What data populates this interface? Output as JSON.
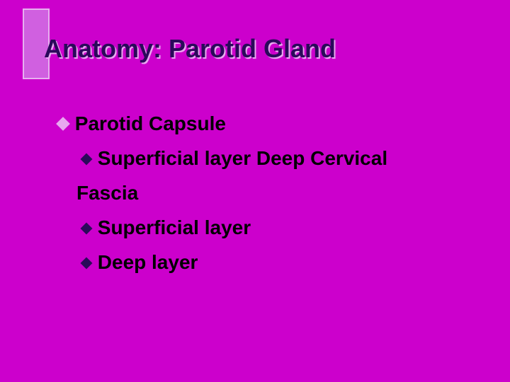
{
  "colors": {
    "background": "#cc00cc",
    "accent_fill": "#d060e0",
    "accent_border": "#e8b0f0",
    "title_text": "#2a0a5a",
    "title_shadow": "#e8a8f0",
    "body_text": "#000000",
    "bullet_lvl1": "#e8a8f0",
    "bullet_lvl2": "#2a0a5a"
  },
  "title": "Anatomy: Parotid Gland",
  "items": [
    {
      "level": 1,
      "text": "Parotid Capsule"
    },
    {
      "level": 2,
      "text": "Superficial layer Deep Cervical"
    },
    {
      "level": "2cont",
      "text": "Fascia"
    },
    {
      "level": 2,
      "text": "Superficial layer"
    },
    {
      "level": 2,
      "text": "Deep layer"
    }
  ]
}
